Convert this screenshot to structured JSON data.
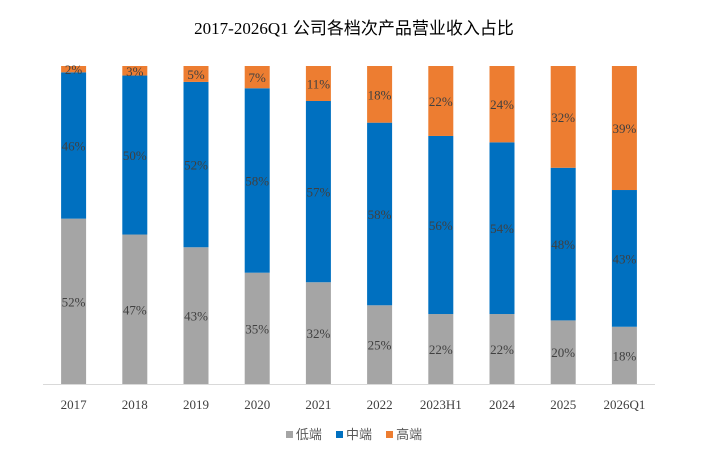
{
  "chart_data": {
    "type": "bar",
    "stacked": "percent",
    "title": "2017-2026Q1 公司各档次产品营业收入占比",
    "categories": [
      "2017",
      "2018",
      "2019",
      "2020",
      "2021",
      "2022",
      "2023H1",
      "2024",
      "2025",
      "2026Q1"
    ],
    "series": [
      {
        "name": "低端",
        "color": "#A5A5A5",
        "values": [
          52,
          47,
          43,
          35,
          32,
          25,
          22,
          22,
          20,
          18
        ]
      },
      {
        "name": "中端",
        "color": "#0070C0",
        "values": [
          46,
          50,
          52,
          58,
          57,
          58,
          56,
          54,
          48,
          43
        ]
      },
      {
        "name": "高端",
        "color": "#ED7D31",
        "values": [
          2,
          3,
          5,
          7,
          11,
          18,
          22,
          24,
          32,
          39
        ]
      }
    ],
    "data_label_format": "{v}%",
    "ylim": [
      0,
      100
    ],
    "grid": false,
    "legend": "bottom"
  }
}
